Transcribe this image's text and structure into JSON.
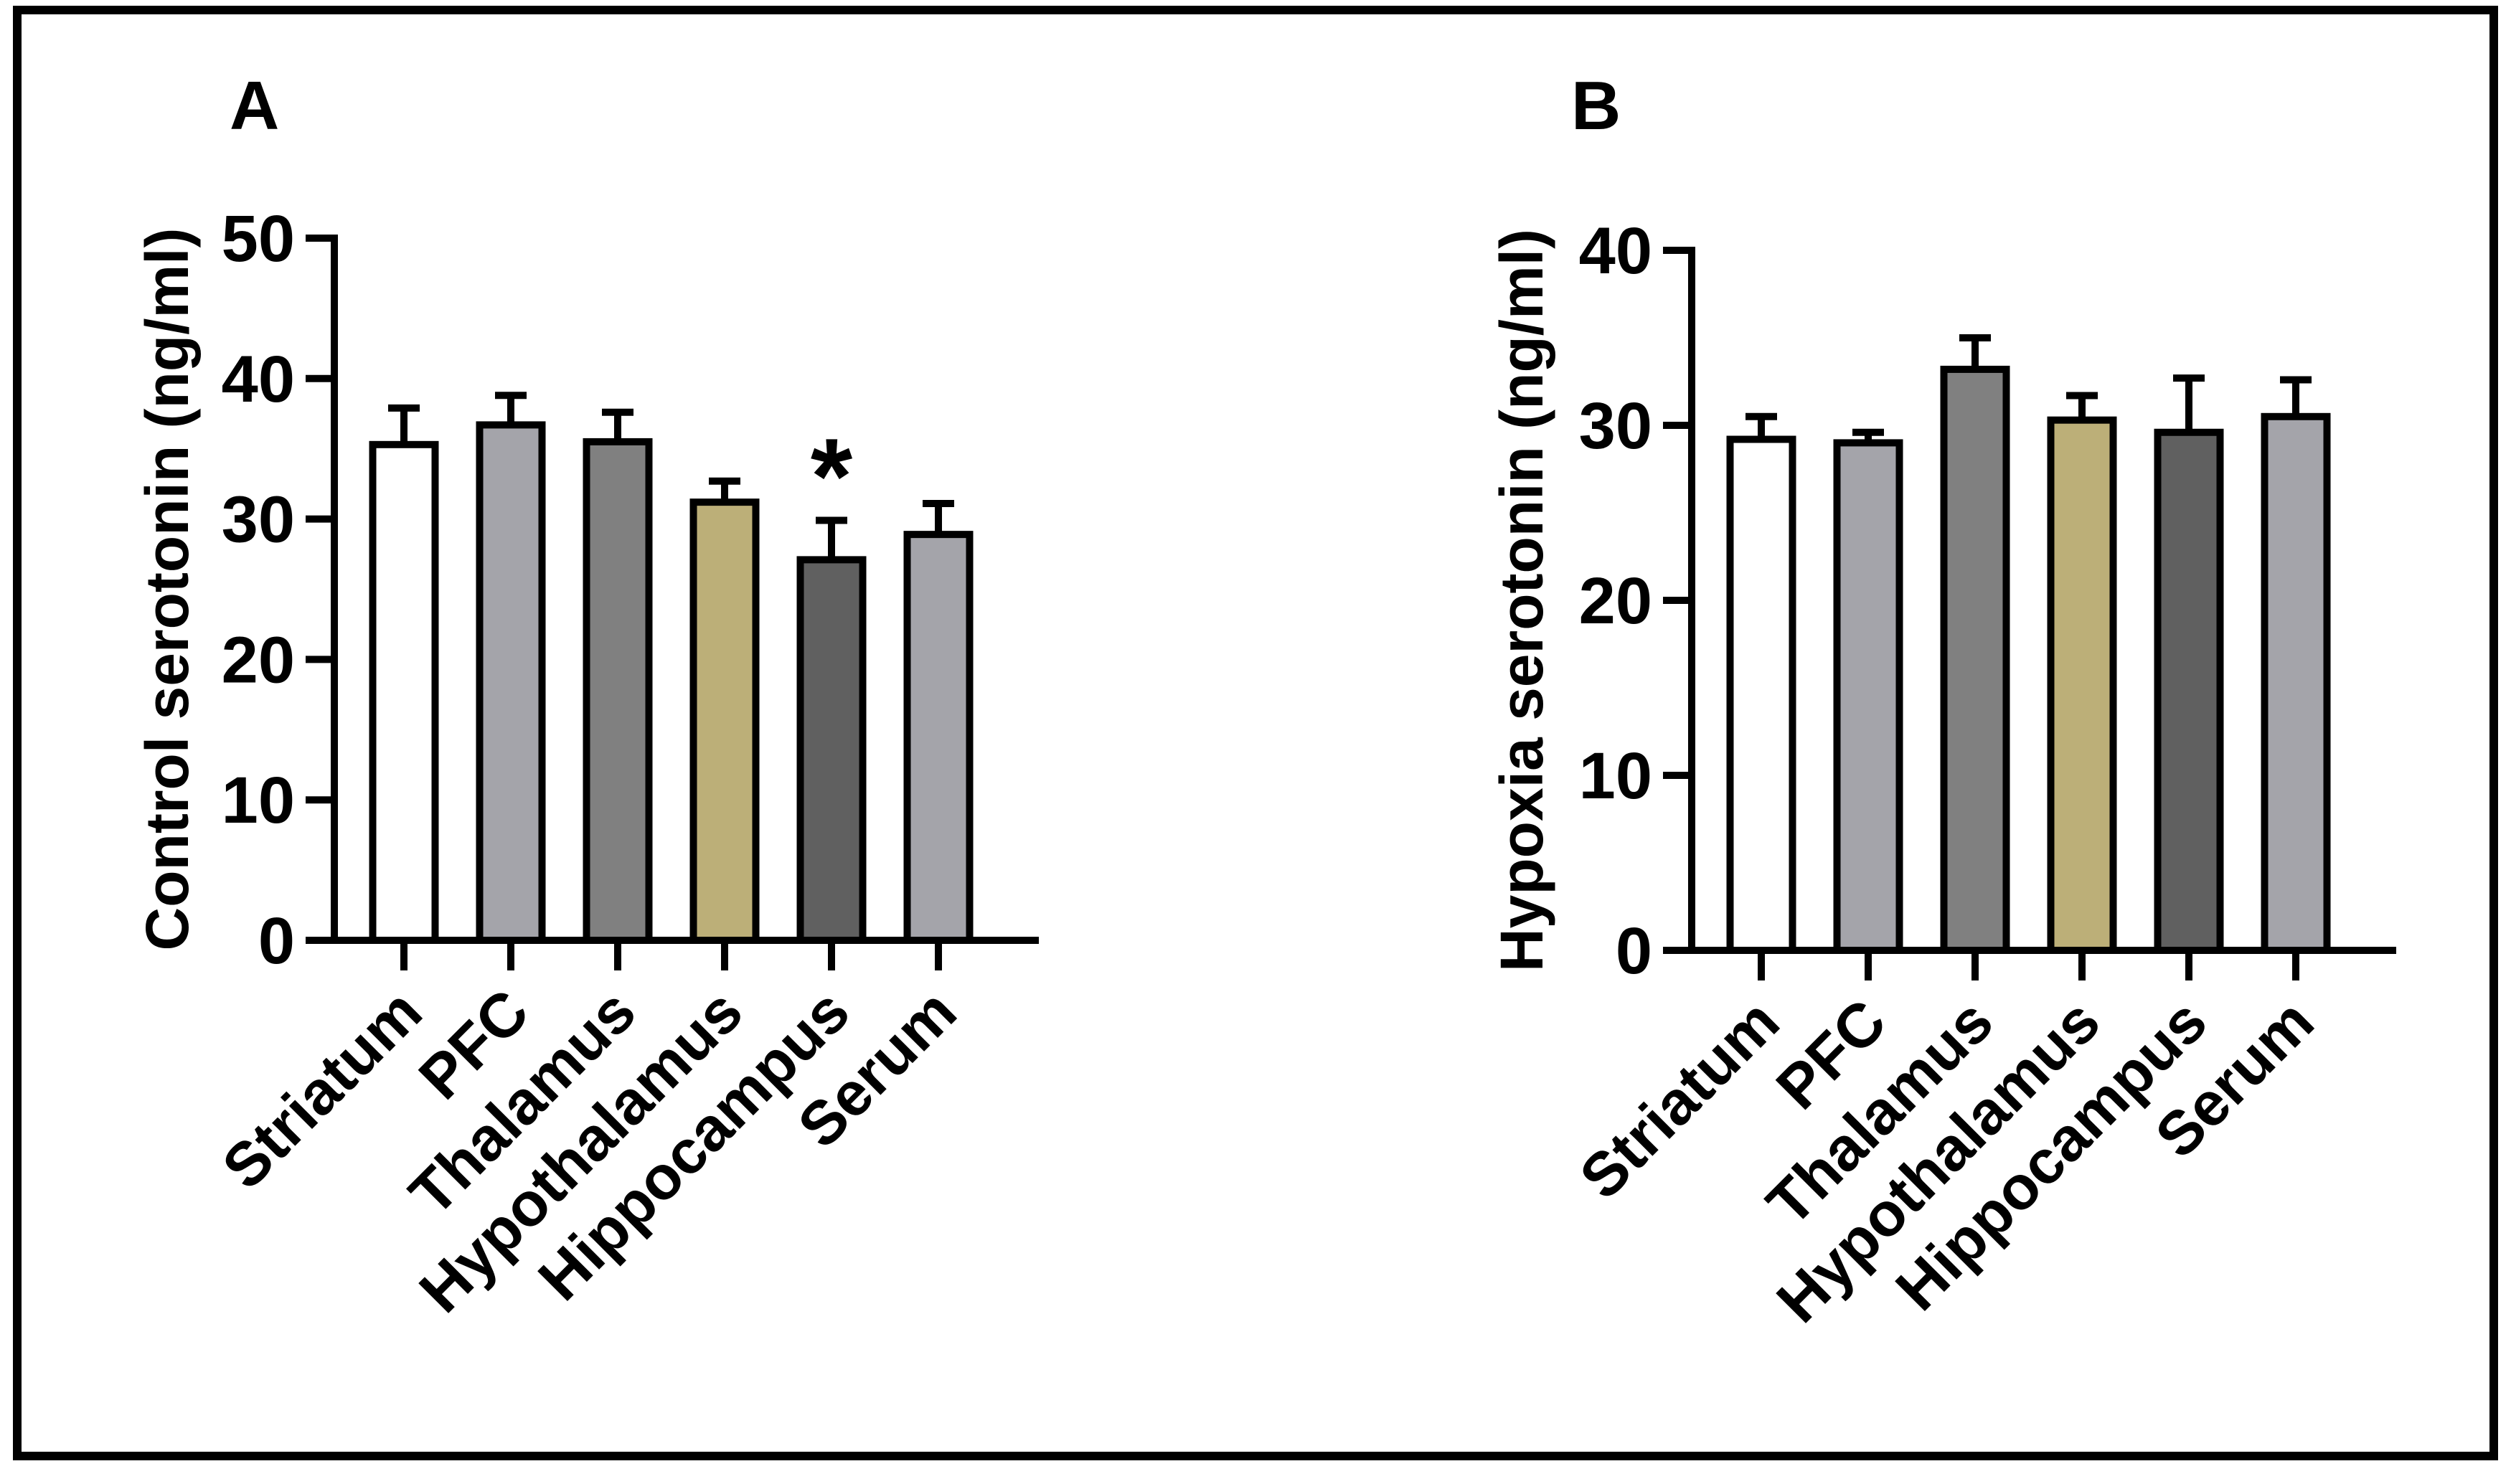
{
  "chart_data": [
    {
      "type": "bar",
      "panel": "A",
      "ylabel": "Control serotonin (ng/ml)",
      "xlabel": "",
      "ylim": [
        0,
        50
      ],
      "yticks": [
        "0",
        "10",
        "20",
        "30",
        "40",
        "50"
      ],
      "categories": [
        "Striatum",
        "PFC",
        "Thalamus",
        "Hypothalamus",
        "Hippocampus",
        "Serum"
      ],
      "values": [
        35.3,
        36.7,
        35.5,
        31.2,
        27.1,
        28.9
      ],
      "errors": [
        2.6,
        2.1,
        2.1,
        1.5,
        2.8,
        2.2
      ],
      "colors": [
        "#ffffff",
        "#a4a4aa",
        "#808080",
        "#bcaf78",
        "#606060",
        "#a4a4aa"
      ],
      "annotations": [
        {
          "category": "Hippocampus",
          "text": "*"
        }
      ]
    },
    {
      "type": "bar",
      "panel": "B",
      "ylabel": "Hypoxia serotonin (ng/ml)",
      "xlabel": "",
      "ylim": [
        0,
        40
      ],
      "yticks": [
        "0",
        "10",
        "20",
        "30",
        "40"
      ],
      "categories": [
        "Striatum",
        "PFC",
        "Thalamus",
        "Hypothalamus",
        "Hippocampus",
        "Serum"
      ],
      "values": [
        29.2,
        29.0,
        33.2,
        30.3,
        29.6,
        30.5
      ],
      "errors": [
        1.3,
        0.6,
        1.8,
        1.4,
        3.1,
        2.1
      ],
      "colors": [
        "#ffffff",
        "#a4a4aa",
        "#808080",
        "#bcaf78",
        "#606060",
        "#a4a4aa"
      ],
      "annotations": []
    }
  ]
}
